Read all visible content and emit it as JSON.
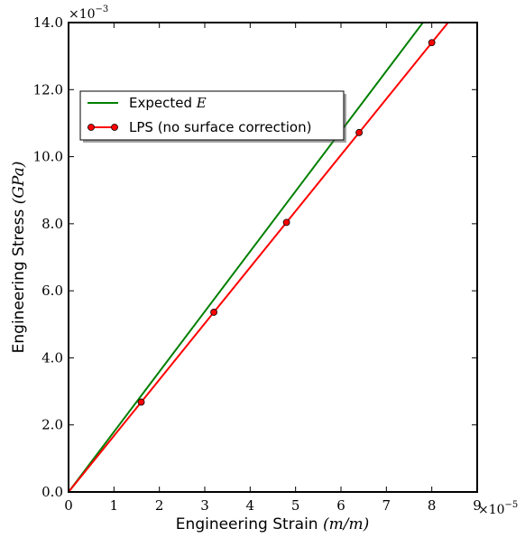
{
  "chart_data": {
    "type": "line",
    "x": [
      0,
      1.6,
      3.2,
      4.8,
      6.4,
      8.0
    ],
    "series": [
      {
        "name": "Expected",
        "name_math": "E",
        "color": "#008000",
        "marker": "none",
        "values": [
          0,
          2.87,
          5.74,
          8.61,
          11.48,
          14.35
        ]
      },
      {
        "name": "LPS (no surface correction)",
        "name_math": "",
        "color": "#ff0000",
        "marker": "circle",
        "values": [
          0,
          2.68,
          5.36,
          8.04,
          10.72,
          13.4
        ]
      }
    ],
    "xlabel": "Engineering Strain",
    "xlabel_math": "(m/m)",
    "ylabel": "Engineering Stress",
    "ylabel_math": "(GPa)",
    "xlim": [
      0,
      9
    ],
    "ylim": [
      0,
      14
    ],
    "xticks": [
      "0",
      "1",
      "2",
      "3",
      "4",
      "5",
      "6",
      "7",
      "8",
      "9"
    ],
    "yticks": [
      "0.0",
      "2.0",
      "4.0",
      "6.0",
      "8.0",
      "10.0",
      "12.0",
      "14.0"
    ],
    "x_offset_base": "×10",
    "x_offset_exp": "−5",
    "y_offset_base": "×10",
    "y_offset_exp": "−3",
    "legend_position": "upper-left",
    "grid": false
  }
}
